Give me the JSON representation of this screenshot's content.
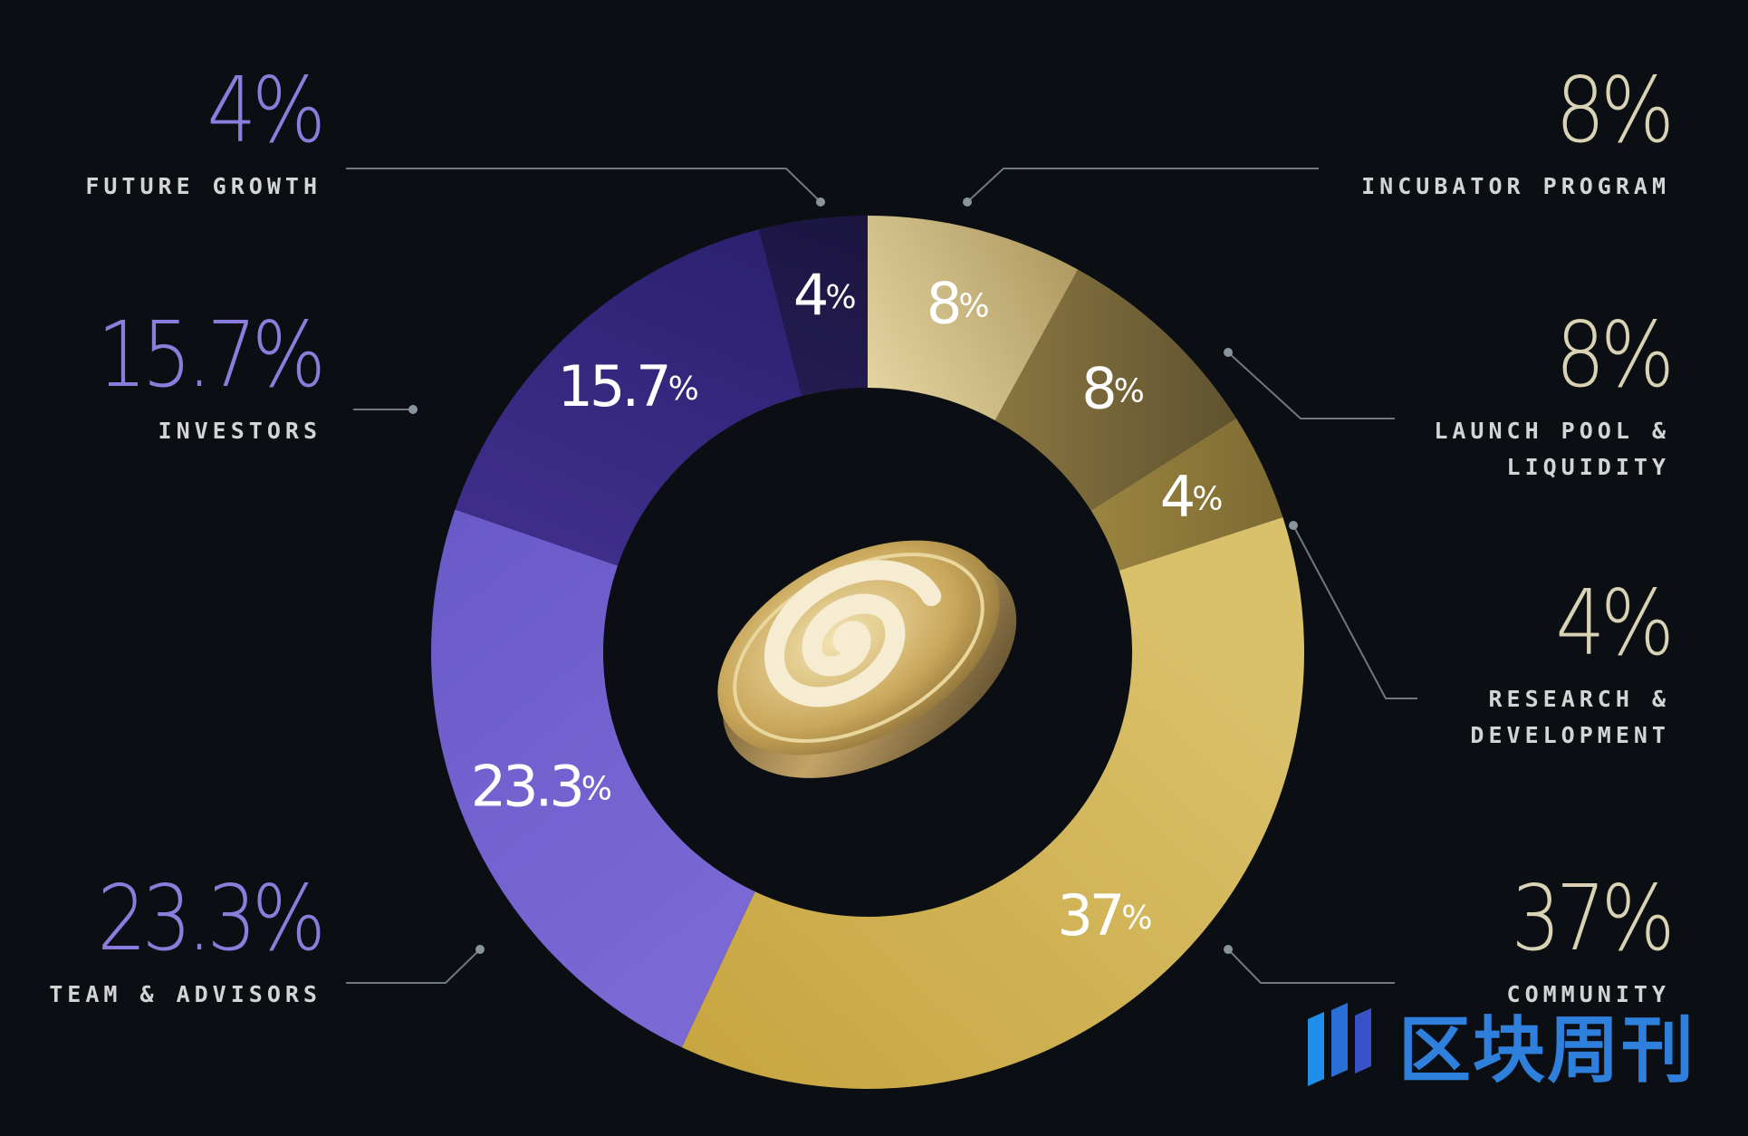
{
  "chart_data": {
    "type": "donut",
    "slices": [
      {
        "label": "INCUBATOR PROGRAM",
        "value": 8,
        "color_inner": "#e4d4a0",
        "color_outer": "#b09a62"
      },
      {
        "label": "LAUNCH POOL & LIQUIDITY",
        "value": 8,
        "color_inner": "#8a7640",
        "color_outer": "#5f5230"
      },
      {
        "label": "RESEARCH & DEVELOPMENT",
        "value": 4,
        "color_inner": "#9a8440",
        "color_outer": "#7d6a32"
      },
      {
        "label": "COMMUNITY",
        "value": 37,
        "color_inner": "#d9c06a",
        "color_outer": "#c8a540"
      },
      {
        "label": "TEAM & ADVISORS",
        "value": 23.3,
        "color_inner": "#7a68d4",
        "color_outer": "#6a5ac8"
      },
      {
        "label": "INVESTORS",
        "value": 15.7,
        "color_inner": "#3e2e8a",
        "color_outer": "#2c2070"
      },
      {
        "label": "FUTURE GROWTH",
        "value": 4,
        "color_inner": "#241c52",
        "color_outer": "#1b1540"
      }
    ],
    "slice_labels": [
      "8%",
      "8%",
      "4%",
      "37%",
      "23.3%",
      "15.7%",
      "4%"
    ]
  },
  "callouts": {
    "future_growth": {
      "pct": "4%",
      "label": "FUTURE GROWTH"
    },
    "investors": {
      "pct": "15.7%",
      "label": "INVESTORS"
    },
    "team_advisors": {
      "pct": "23.3%",
      "label": "TEAM & ADVISORS"
    },
    "incubator": {
      "pct": "8%",
      "label": "INCUBATOR PROGRAM"
    },
    "launch_pool": {
      "pct": "8%",
      "label_1": "LAUNCH POOL &",
      "label_2": "LIQUIDITY"
    },
    "research": {
      "pct": "4%",
      "label_1": "RESEARCH &",
      "label_2": "DEVELOPMENT"
    },
    "community": {
      "pct": "37%",
      "label": "COMMUNITY"
    }
  },
  "colors": {
    "purple_text": "#8c7ddc",
    "gold_text": "#d9d2b4",
    "leader_line": "#6f7880"
  },
  "watermark": {
    "text": "区块周刊"
  }
}
